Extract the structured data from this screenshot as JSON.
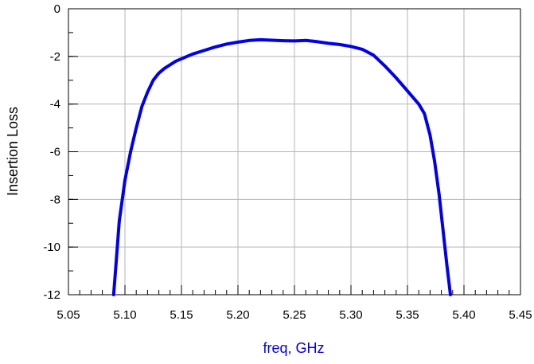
{
  "chart_data": {
    "type": "line",
    "title": "",
    "xlabel": "freq, GHz",
    "ylabel": "Insertion Loss",
    "xlim": [
      5.05,
      5.45
    ],
    "ylim": [
      -12,
      0
    ],
    "grid": true,
    "x_ticks": [
      5.05,
      5.1,
      5.15,
      5.2,
      5.25,
      5.3,
      5.35,
      5.4,
      5.45
    ],
    "x_tick_labels": [
      "5.05",
      "5.10",
      "5.15",
      "5.20",
      "5.25",
      "5.30",
      "5.35",
      "5.40",
      "5.45"
    ],
    "y_ticks": [
      0,
      -2,
      -4,
      -6,
      -8,
      -10,
      -12
    ],
    "y_tick_labels": [
      "0",
      "-2",
      "-4",
      "-6",
      "-8",
      "-10",
      "-12"
    ],
    "series": [
      {
        "color": "#0000ee",
        "x": [
          5.09,
          5.092,
          5.095,
          5.1,
          5.105,
          5.11,
          5.115,
          5.12,
          5.125,
          5.13,
          5.135,
          5.14,
          5.145,
          5.15,
          5.16,
          5.17,
          5.18,
          5.19,
          5.2,
          5.21,
          5.22,
          5.23,
          5.24,
          5.25,
          5.26,
          5.27,
          5.28,
          5.29,
          5.3,
          5.31,
          5.32,
          5.33,
          5.34,
          5.35,
          5.36,
          5.365,
          5.37,
          5.374,
          5.378,
          5.382,
          5.385,
          5.388
        ],
        "y": [
          -12.0,
          -10.8,
          -8.9,
          -7.2,
          -6.0,
          -5.0,
          -4.1,
          -3.5,
          -3.0,
          -2.7,
          -2.5,
          -2.35,
          -2.2,
          -2.1,
          -1.9,
          -1.75,
          -1.6,
          -1.48,
          -1.4,
          -1.33,
          -1.3,
          -1.32,
          -1.34,
          -1.35,
          -1.33,
          -1.38,
          -1.45,
          -1.5,
          -1.58,
          -1.7,
          -1.95,
          -2.4,
          -2.9,
          -3.45,
          -4.0,
          -4.4,
          -5.3,
          -6.4,
          -7.8,
          -9.5,
          -10.8,
          -12.0
        ]
      }
    ]
  }
}
